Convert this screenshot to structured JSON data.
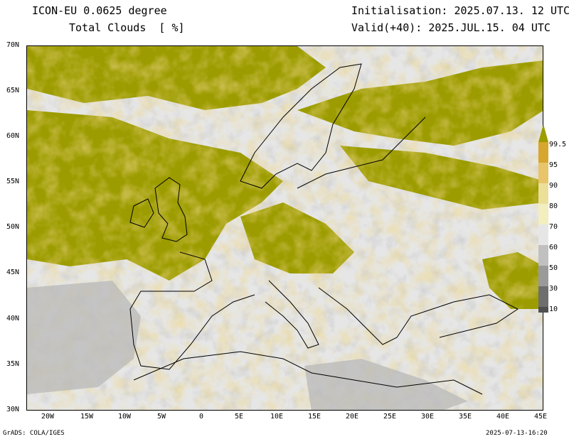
{
  "header": {
    "left_line1": "ICON-EU 0.0625 degree",
    "left_line2": "Total Clouds  [ %]",
    "right_line1": "Initialisation: 2025.07.13. 12 UTC",
    "right_line2": "Valid(+40): 2025.JUL.15. 04 UTC"
  },
  "axes": {
    "lat_labels": [
      "70N",
      "65N",
      "60N",
      "55N",
      "50N",
      "45N",
      "40N",
      "35N",
      "30N"
    ],
    "lon_labels": [
      "20W",
      "15W",
      "10W",
      "5W",
      "0",
      "5E",
      "10E",
      "15E",
      "20E",
      "25E",
      "30E",
      "35E",
      "40E",
      "45E"
    ]
  },
  "legend": {
    "labels": [
      "99.5",
      "95",
      "90",
      "80",
      "70",
      "60",
      "50",
      "30",
      "10"
    ],
    "colors": [
      "#9c9c00",
      "#d6a62e",
      "#e8c46a",
      "#ecdf9a",
      "#f2eebe",
      "#e6e6e6",
      "#c0c0c0",
      "#9a9a9a",
      "#6e6e6e",
      "#4f4f4f"
    ]
  },
  "footer": {
    "left": "GrADS: COLA/IGES",
    "right": "2025-07-13-16:20"
  }
}
